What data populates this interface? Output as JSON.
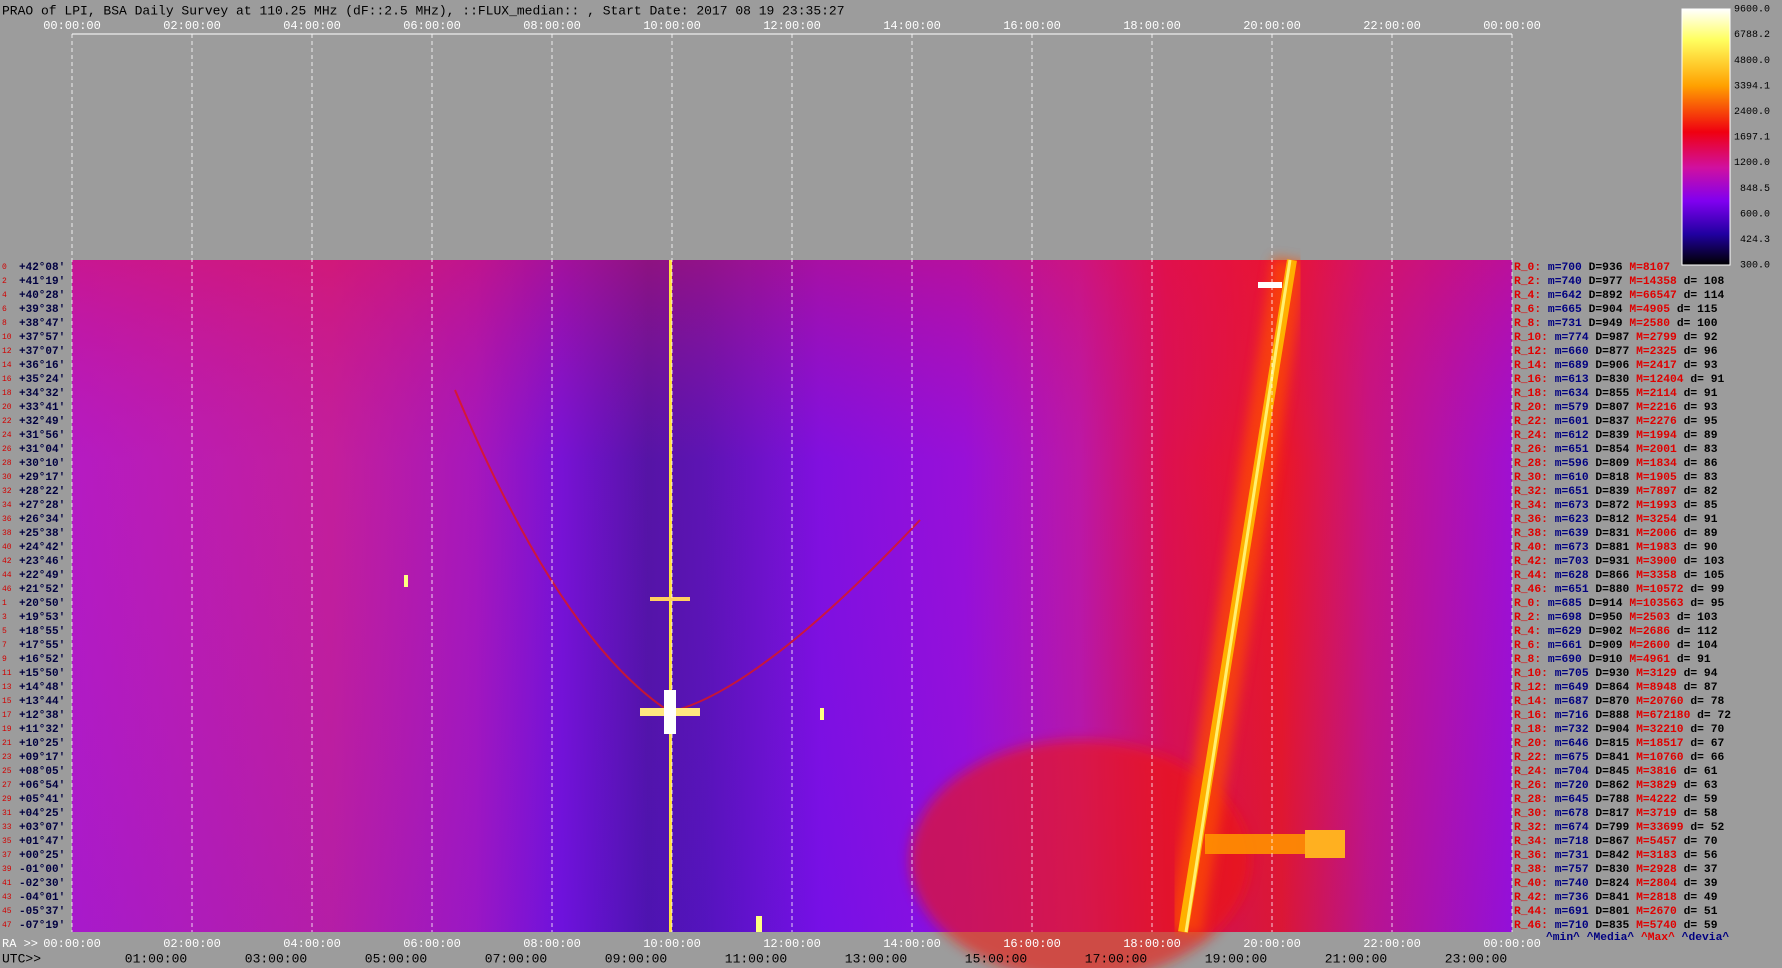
{
  "header": {
    "title": "PRAO of LPI, BSA Daily Survey at 110.25 MHz (dF::2.5 MHz), ::FLUX_median:: , Start Date: 2017 08 19 23:35:27"
  },
  "top_times": [
    "00:00:00",
    "02:00:00",
    "04:00:00",
    "06:00:00",
    "08:00:00",
    "10:00:00",
    "12:00:00",
    "14:00:00",
    "16:00:00",
    "18:00:00",
    "20:00:00",
    "22:00:00",
    "00:00:00"
  ],
  "colorbar": {
    "ticks": [
      "9600.0",
      "6788.2",
      "4800.0",
      "3394.1",
      "2400.0",
      "1697.1",
      "1200.0",
      "848.5",
      "600.0",
      "424.3",
      "300.0"
    ]
  },
  "row_index": [
    "0",
    "2",
    "4",
    "6",
    "8",
    "10",
    "12",
    "14",
    "16",
    "18",
    "20",
    "22",
    "24",
    "26",
    "28",
    "30",
    "32",
    "34",
    "36",
    "38",
    "40",
    "42",
    "44",
    "46",
    "1",
    "3",
    "5",
    "7",
    "9",
    "11",
    "13",
    "15",
    "17",
    "19",
    "21",
    "23",
    "25",
    "27",
    "29",
    "31",
    "33",
    "35",
    "37",
    "39",
    "41",
    "43",
    "45",
    "47"
  ],
  "declinations": [
    "+42°08'",
    "+41°19'",
    "+40°28'",
    "+39°38'",
    "+38°47'",
    "+37°57'",
    "+37°07'",
    "+36°16'",
    "+35°24'",
    "+34°32'",
    "+33°41'",
    "+32°49'",
    "+31°56'",
    "+31°04'",
    "+30°10'",
    "+29°17'",
    "+28°22'",
    "+27°28'",
    "+26°34'",
    "+25°38'",
    "+24°42'",
    "+23°46'",
    "+22°49'",
    "+21°52'",
    "+20°50'",
    "+19°53'",
    "+18°55'",
    "+17°55'",
    "+16°52'",
    "+15°50'",
    "+14°48'",
    "+13°44'",
    "+12°38'",
    "+11°32'",
    "+10°25'",
    "+09°17'",
    "+08°05'",
    "+06°54'",
    "+05°41'",
    "+04°25'",
    "+03°07'",
    "+01°47'",
    "+00°25'",
    "-01°00'",
    "-02°30'",
    "-04°01'",
    "-05°37'",
    "-07°19'"
  ],
  "stats": [
    {
      "r": "R_0:",
      "m": "m=700",
      "D": "D=936",
      "M": "M=8107"
    },
    {
      "r": "R_2:",
      "m": "m=740",
      "D": "D=977",
      "M": "M=14358",
      "d": "d= 108"
    },
    {
      "r": "R_4:",
      "m": "m=642",
      "D": "D=892",
      "M": "M=66547",
      "d": "d= 114"
    },
    {
      "r": "R_6:",
      "m": "m=665",
      "D": "D=904",
      "M": "M=4905",
      "d": "d= 115"
    },
    {
      "r": "R_8:",
      "m": "m=731",
      "D": "D=949",
      "M": "M=2580",
      "d": "d= 100"
    },
    {
      "r": "R_10:",
      "m": "m=774",
      "D": "D=987",
      "M": "M=2799",
      "d": "d= 92"
    },
    {
      "r": "R_12:",
      "m": "m=660",
      "D": "D=877",
      "M": "M=2325",
      "d": "d= 96"
    },
    {
      "r": "R_14:",
      "m": "m=689",
      "D": "D=906",
      "M": "M=2417",
      "d": "d= 93"
    },
    {
      "r": "R_16:",
      "m": "m=613",
      "D": "D=830",
      "M": "M=12404",
      "d": "d= 91"
    },
    {
      "r": "R_18:",
      "m": "m=634",
      "D": "D=855",
      "M": "M=2114",
      "d": "d= 91"
    },
    {
      "r": "R_20:",
      "m": "m=579",
      "D": "D=807",
      "M": "M=2216",
      "d": "d= 93"
    },
    {
      "r": "R_22:",
      "m": "m=601",
      "D": "D=837",
      "M": "M=2276",
      "d": "d= 95"
    },
    {
      "r": "R_24:",
      "m": "m=612",
      "D": "D=839",
      "M": "M=1994",
      "d": "d= 89"
    },
    {
      "r": "R_26:",
      "m": "m=651",
      "D": "D=854",
      "M": "M=2001",
      "d": "d= 83"
    },
    {
      "r": "R_28:",
      "m": "m=596",
      "D": "D=809",
      "M": "M=1834",
      "d": "d= 86"
    },
    {
      "r": "R_30:",
      "m": "m=610",
      "D": "D=818",
      "M": "M=1905",
      "d": "d= 83"
    },
    {
      "r": "R_32:",
      "m": "m=651",
      "D": "D=839",
      "M": "M=7897",
      "d": "d= 82"
    },
    {
      "r": "R_34:",
      "m": "m=673",
      "D": "D=872",
      "M": "M=1993",
      "d": "d= 85"
    },
    {
      "r": "R_36:",
      "m": "m=623",
      "D": "D=812",
      "M": "M=3254",
      "d": "d= 91"
    },
    {
      "r": "R_38:",
      "m": "m=639",
      "D": "D=831",
      "M": "M=2006",
      "d": "d= 89"
    },
    {
      "r": "R_40:",
      "m": "m=673",
      "D": "D=881",
      "M": "M=1983",
      "d": "d= 90"
    },
    {
      "r": "R_42:",
      "m": "m=703",
      "D": "D=931",
      "M": "M=3900",
      "d": "d= 103"
    },
    {
      "r": "R_44:",
      "m": "m=628",
      "D": "D=866",
      "M": "M=3358",
      "d": "d= 105"
    },
    {
      "r": "R_46:",
      "m": "m=651",
      "D": "D=880",
      "M": "M=10572",
      "d": "d= 99"
    },
    {
      "r": "R_0:",
      "m": "m=685",
      "D": "D=914",
      "M": "M=103563",
      "d": "d= 95"
    },
    {
      "r": "R_2:",
      "m": "m=698",
      "D": "D=950",
      "M": "M=2503",
      "d": "d= 103"
    },
    {
      "r": "R_4:",
      "m": "m=629",
      "D": "D=902",
      "M": "M=2686",
      "d": "d= 112"
    },
    {
      "r": "R_6:",
      "m": "m=661",
      "D": "D=909",
      "M": "M=2600",
      "d": "d= 104"
    },
    {
      "r": "R_8:",
      "m": "m=690",
      "D": "D=910",
      "M": "M=4961",
      "d": "d= 91"
    },
    {
      "r": "R_10:",
      "m": "m=705",
      "D": "D=930",
      "M": "M=3129",
      "d": "d= 94"
    },
    {
      "r": "R_12:",
      "m": "m=649",
      "D": "D=864",
      "M": "M=8948",
      "d": "d= 87"
    },
    {
      "r": "R_14:",
      "m": "m=687",
      "D": "D=870",
      "M": "M=20760",
      "d": "d= 78"
    },
    {
      "r": "R_16:",
      "m": "m=716",
      "D": "D=888",
      "M": "M=672180",
      "d": "d= 72"
    },
    {
      "r": "R_18:",
      "m": "m=732",
      "D": "D=904",
      "M": "M=32210",
      "d": "d= 70"
    },
    {
      "r": "R_20:",
      "m": "m=646",
      "D": "D=815",
      "M": "M=18517",
      "d": "d= 67"
    },
    {
      "r": "R_22:",
      "m": "m=675",
      "D": "D=841",
      "M": "M=10760",
      "d": "d= 66"
    },
    {
      "r": "R_24:",
      "m": "m=704",
      "D": "D=845",
      "M": "M=3816",
      "d": "d= 61"
    },
    {
      "r": "R_26:",
      "m": "m=720",
      "D": "D=862",
      "M": "M=3829",
      "d": "d= 63"
    },
    {
      "r": "R_28:",
      "m": "m=645",
      "D": "D=788",
      "M": "M=4222",
      "d": "d= 59"
    },
    {
      "r": "R_30:",
      "m": "m=678",
      "D": "D=817",
      "M": "M=3719",
      "d": "d= 58"
    },
    {
      "r": "R_32:",
      "m": "m=674",
      "D": "D=799",
      "M": "M=33699",
      "d": "d= 52"
    },
    {
      "r": "R_34:",
      "m": "m=718",
      "D": "D=867",
      "M": "M=5457",
      "d": "d= 70"
    },
    {
      "r": "R_36:",
      "m": "m=731",
      "D": "D=842",
      "M": "M=3183",
      "d": "d= 56"
    },
    {
      "r": "R_38:",
      "m": "m=757",
      "D": "D=830",
      "M": "M=2928",
      "d": "d= 37"
    },
    {
      "r": "R_40:",
      "m": "m=740",
      "D": "D=824",
      "M": "M=2804",
      "d": "d= 39"
    },
    {
      "r": "R_42:",
      "m": "m=736",
      "D": "D=841",
      "M": "M=2818",
      "d": "d= 49"
    },
    {
      "r": "R_44:",
      "m": "m=691",
      "D": "D=801",
      "M": "M=2670",
      "d": "d= 51"
    },
    {
      "r": "R_46:",
      "m": "m=710",
      "D": "D=835",
      "M": "M=5740",
      "d": "d= 59"
    }
  ],
  "stats_footer": [
    "^min^",
    "^Media^",
    "^Max^",
    "^devia^"
  ],
  "bottom": {
    "ra_label": "RA >>",
    "ra_times": [
      "00:00:00",
      "02:00:00",
      "04:00:00",
      "06:00:00",
      "08:00:00",
      "10:00:00",
      "12:00:00",
      "14:00:00",
      "16:00:00",
      "18:00:00",
      "20:00:00",
      "22:00:00",
      "00:00:00"
    ],
    "utc_label": "UTC>>",
    "utc_times": [
      "01:00:00",
      "03:00:00",
      "05:00:00",
      "07:00:00",
      "09:00:00",
      "11:00:00",
      "13:00:00",
      "15:00:00",
      "17:00:00",
      "19:00:00",
      "21:00:00",
      "23:00:00"
    ]
  }
}
